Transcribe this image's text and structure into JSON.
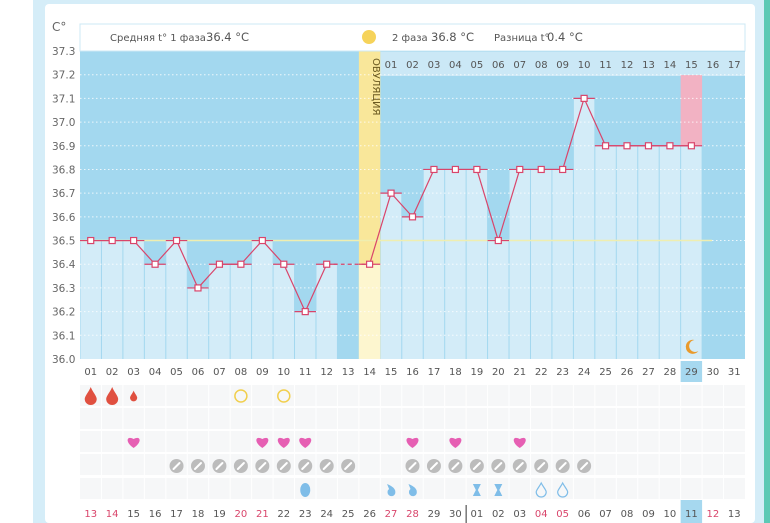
{
  "header": {
    "unit_label": "C°",
    "phase1_label": "Средняя t° 1 фаза",
    "phase1_value": "36.4 °C",
    "phase2_label": "2 фаза",
    "phase2_value": "36.8 °C",
    "diff_label": "Разница t°",
    "diff_value": "0.4 °C",
    "ovulation_label": "ОВУЛЯЦИЯ"
  },
  "colors": {
    "line": "#d9456b",
    "bar": "#d3ecf8",
    "bg": "#a3d8ef",
    "ovulation": "#f9e79a",
    "today": "#f2b2c3",
    "coverline": "#efeeb0"
  },
  "chart_data": {
    "type": "line",
    "title": "",
    "ylabel": "C°",
    "ylim": [
      36.0,
      37.3
    ],
    "yticks": [
      "36.0",
      "36.1",
      "36.2",
      "36.3",
      "36.4",
      "36.5",
      "36.6",
      "36.7",
      "36.8",
      "36.9",
      "37.0",
      "37.1",
      "37.2",
      "37.3"
    ],
    "coverline": 36.5,
    "ovulation_day": 14,
    "today_day": 29,
    "cycle_days": [
      "01",
      "02",
      "03",
      "04",
      "05",
      "06",
      "07",
      "08",
      "09",
      "10",
      "11",
      "12",
      "13",
      "14",
      "15",
      "16",
      "17",
      "18",
      "19",
      "20",
      "21",
      "22",
      "23",
      "24",
      "25",
      "26",
      "27",
      "28",
      "29",
      "30",
      "31"
    ],
    "phase2_days": [
      "01",
      "02",
      "03",
      "04",
      "05",
      "06",
      "07",
      "08",
      "09",
      "10",
      "11",
      "12",
      "13",
      "14",
      "15",
      "16",
      "17"
    ],
    "temperatures": [
      36.5,
      36.5,
      36.5,
      36.4,
      36.5,
      36.3,
      36.4,
      36.4,
      36.5,
      36.4,
      36.2,
      36.4,
      null,
      36.4,
      36.7,
      36.6,
      36.8,
      36.8,
      36.8,
      36.5,
      36.8,
      36.8,
      36.8,
      37.1,
      36.9,
      36.9,
      36.9,
      36.9,
      36.9,
      null,
      null
    ]
  },
  "symbols": {
    "bleeding": {
      "1": "large",
      "2": "large",
      "3": "small"
    },
    "circles": [
      8,
      10
    ],
    "hearts": [
      3,
      9,
      10,
      11,
      16,
      18,
      21
    ],
    "pills": [
      5,
      6,
      7,
      8,
      9,
      10,
      11,
      12,
      13,
      16,
      17,
      18,
      19,
      20,
      21,
      22,
      23,
      24
    ],
    "mucus": {
      "11": "egg",
      "15": "swirl",
      "16": "swirl",
      "19": "hourglass",
      "20": "hourglass",
      "22": "drop-outline",
      "23": "drop-outline"
    },
    "moon_day": 29
  },
  "calendar_dates": [
    "13",
    "14",
    "15",
    "16",
    "17",
    "18",
    "19",
    "20",
    "21",
    "22",
    "23",
    "24",
    "25",
    "26",
    "27",
    "28",
    "29",
    "30",
    "01",
    "02",
    "03",
    "04",
    "05",
    "06",
    "07",
    "08",
    "09",
    "10",
    "11",
    "12",
    "13"
  ],
  "calendar_weekend": [
    0,
    1,
    7,
    8,
    14,
    15,
    21,
    22,
    29
  ],
  "calendar_today_index": 28
}
